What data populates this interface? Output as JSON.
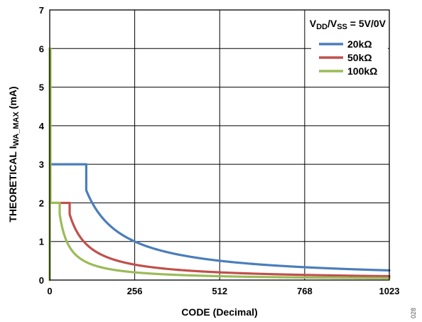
{
  "chart_data": {
    "type": "line",
    "xlabel": "CODE (Decimal)",
    "ylabel_parts": {
      "main": "THEORETICAL I",
      "sub": "WA_MAX",
      "unit": " (mA)"
    },
    "annotation": {
      "v1": "V",
      "sub1": "DD",
      "slash": "/V",
      "sub2": "SS",
      "rest": " = 5V/0V"
    },
    "figure_id": "028",
    "xlim": [
      0,
      1023
    ],
    "ylim": [
      0,
      7
    ],
    "x_ticks": [
      0,
      256,
      512,
      768,
      1023
    ],
    "y_ticks": [
      0,
      1,
      2,
      3,
      4,
      5,
      6,
      7
    ],
    "grid": true,
    "legend_position": "top-right",
    "series": [
      {
        "name": "20kΩ",
        "color": "#4a7ebb",
        "r_kohm": 20,
        "i_max": 3,
        "formula": "I = i_max for code <= knee, else 5*1024/(R_kohm*code)",
        "knee": 110
      },
      {
        "name": "50kΩ",
        "color": "#c0504d",
        "r_kohm": 50,
        "i_max": 2,
        "formula": "I = i_max for code <= knee, else 5*1024/(R_kohm*code)",
        "knee": 60
      },
      {
        "name": "100kΩ",
        "color": "#9bbb59",
        "r_kohm": 100,
        "i_max": 2,
        "formula": "spike to 6 at code 0-2, then i_max to knee, then 5*1024/(R_kohm*code)",
        "knee": 30,
        "spike": 6
      }
    ]
  }
}
